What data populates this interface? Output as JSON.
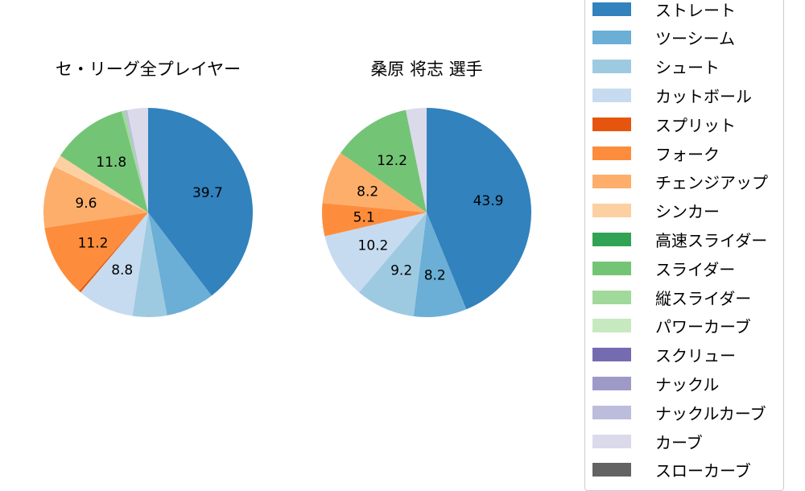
{
  "chart_data": [
    {
      "type": "pie",
      "title": "セ・リーグ全プレイヤー",
      "center": [
        184,
        264
      ],
      "radius": 130,
      "startangle": 90,
      "counterclock": false,
      "categories": [
        "ストレート",
        "ツーシーム",
        "シュート",
        "カットボール",
        "スプリット",
        "フォーク",
        "チェンジアップ",
        "シンカー",
        "高速スライダー",
        "スライダー",
        "縦スライダー",
        "パワーカーブ",
        "スクリュー",
        "ナックル",
        "ナックルカーブ",
        "カーブ",
        "スローカーブ"
      ],
      "values": [
        39.7,
        7.5,
        5.3,
        8.8,
        0.3,
        11.2,
        9.6,
        1.9,
        0.0,
        11.8,
        0.5,
        0.0,
        0.0,
        0.0,
        0.4,
        3.2,
        0.0
      ],
      "labels_shown": {
        "ストレート": "39.7",
        "カットボール": "8.8",
        "フォーク": "11.2",
        "チェンジアップ": "9.6",
        "スライダー": "11.8"
      }
    },
    {
      "type": "pie",
      "title": "桑原 将志  選手",
      "center": [
        530,
        264
      ],
      "radius": 130,
      "startangle": 90,
      "counterclock": false,
      "categories": [
        "ストレート",
        "ツーシーム",
        "シュート",
        "カットボール",
        "スプリット",
        "フォーク",
        "チェンジアップ",
        "シンカー",
        "高速スライダー",
        "スライダー",
        "縦スライダー",
        "パワーカーブ",
        "スクリュー",
        "ナックル",
        "ナックルカーブ",
        "カーブ",
        "スローカーブ"
      ],
      "values": [
        43.9,
        8.2,
        9.2,
        10.2,
        0.0,
        5.1,
        8.2,
        0.0,
        0.0,
        12.2,
        0.0,
        0.0,
        0.0,
        0.0,
        0.0,
        3.2,
        0.0
      ],
      "labels_shown": {
        "ストレート": "43.9",
        "ツーシーム": "8.2",
        "シュート": "9.2",
        "カットボール": "10.2",
        "フォーク": "5.1",
        "チェンジアップ": "8.2",
        "スライダー": "12.2"
      }
    }
  ],
  "titles": {
    "left": "セ・リーグ全プレイヤー",
    "right": "桑原 将志  選手"
  },
  "legend": {
    "items": [
      {
        "label": "ストレート",
        "color": "#3182bd"
      },
      {
        "label": "ツーシーム",
        "color": "#6baed6"
      },
      {
        "label": "シュート",
        "color": "#9ecae1"
      },
      {
        "label": "カットボール",
        "color": "#c6dbef"
      },
      {
        "label": "スプリット",
        "color": "#e6550d"
      },
      {
        "label": "フォーク",
        "color": "#fd8d3c"
      },
      {
        "label": "チェンジアップ",
        "color": "#fdae6b"
      },
      {
        "label": "シンカー",
        "color": "#fdd0a2"
      },
      {
        "label": "高速スライダー",
        "color": "#31a354"
      },
      {
        "label": "スライダー",
        "color": "#74c476"
      },
      {
        "label": "縦スライダー",
        "color": "#a1d99b"
      },
      {
        "label": "パワーカーブ",
        "color": "#c7e9c0"
      },
      {
        "label": "スクリュー",
        "color": "#756bb1"
      },
      {
        "label": "ナックル",
        "color": "#9e9ac8"
      },
      {
        "label": "ナックルカーブ",
        "color": "#bcbddc"
      },
      {
        "label": "カーブ",
        "color": "#dadaeb"
      },
      {
        "label": "スローカーブ",
        "color": "#636363"
      }
    ]
  }
}
